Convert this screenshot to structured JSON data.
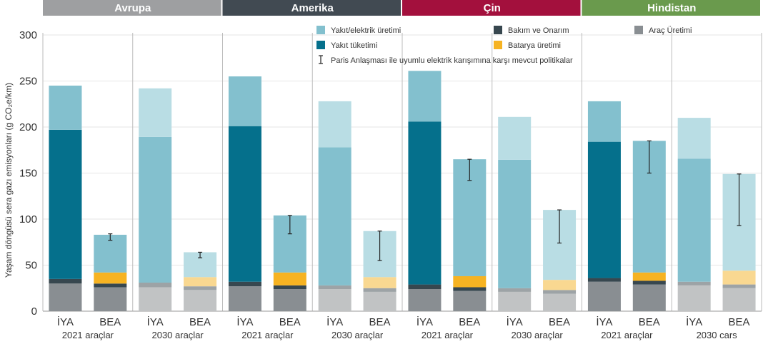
{
  "chart_data": {
    "type": "bar",
    "ylabel": "Yaşam döngüsü sera gazı emisyonları (g CO₂e/km)",
    "ylim": [
      0,
      300
    ],
    "yticks": [
      0,
      50,
      100,
      150,
      200,
      250,
      300
    ],
    "grid": true,
    "legend_position": "top-right",
    "colors": {
      "ice_fuel_production": "#83c0ce",
      "ice_fuel_consumption": "#05708c",
      "bev_fuel_production": "#83c0ce",
      "maintenance": "#37474f",
      "battery": "#f6b322",
      "vehicle_production": "#898e92",
      "faded_fuel_production": "#b9dde4",
      "faded_battery": "#f9d891",
      "faded_vehicle_production": "#c1c3c4",
      "faded_maintenance": "#9da3a6",
      "region_europe": "#9e9fa1",
      "region_america": "#414a52",
      "region_china": "#a3103d",
      "region_india": "#6a9a4d"
    },
    "legend": [
      {
        "key": "fuel_production",
        "label": "Yakıt/elektrik üretimi",
        "color": "#83c0ce"
      },
      {
        "key": "maintenance",
        "label": "Bakım ve Onarım",
        "color": "#37474f"
      },
      {
        "key": "vehicle_production",
        "label": "Araç Üretimi",
        "color": "#898e92"
      },
      {
        "key": "fuel_consumption",
        "label": "Yakıt tüketimi",
        "color": "#05708c"
      },
      {
        "key": "battery",
        "label": "Batarya üretimi",
        "color": "#f6b322"
      }
    ],
    "legend_errorbar_label": "Paris Anlaşması ile uyumlu elektrik karışımına karşı mevcut politikalar",
    "regions": [
      {
        "name": "Avrupa",
        "color": "#9e9fa1"
      },
      {
        "name": "Amerika",
        "color": "#414a52"
      },
      {
        "name": "Çin",
        "color": "#a3103d"
      },
      {
        "name": "Hindistan",
        "color": "#6a9a4d"
      }
    ],
    "groups": [
      {
        "region": "Avrupa",
        "label": "2021 araçlar",
        "faded": false,
        "bars": [
          {
            "category": "İYA",
            "vehicle_production": 30,
            "maintenance": 5,
            "battery": 0,
            "fuel_consumption": 162,
            "fuel_production": 48,
            "error": null
          },
          {
            "category": "BEA",
            "vehicle_production": 26,
            "maintenance": 4,
            "battery": 12,
            "fuel_consumption": 0,
            "fuel_production": 41,
            "error": [
              77,
              84
            ]
          }
        ]
      },
      {
        "region": "Avrupa",
        "label": "2030 araçlar",
        "faded": true,
        "bars": [
          {
            "category": "İYA",
            "vehicle_production": 26,
            "maintenance": 5,
            "battery": 0,
            "fuel_consumption": 0,
            "fuel_production": 211,
            "error": null
          },
          {
            "category": "BEA",
            "vehicle_production": 23,
            "maintenance": 4,
            "battery": 10,
            "fuel_consumption": 0,
            "fuel_production": 27,
            "error": [
              58,
              64
            ]
          }
        ]
      },
      {
        "region": "Amerika",
        "label": "2021 araçlar",
        "faded": false,
        "bars": [
          {
            "category": "İYA",
            "vehicle_production": 27,
            "maintenance": 5,
            "battery": 0,
            "fuel_consumption": 169,
            "fuel_production": 54,
            "error": null
          },
          {
            "category": "BEA",
            "vehicle_production": 24,
            "maintenance": 4,
            "battery": 14,
            "fuel_consumption": 0,
            "fuel_production": 62,
            "error": [
              84,
              104
            ]
          }
        ]
      },
      {
        "region": "Amerika",
        "label": "2030 araçlar",
        "faded": true,
        "bars": [
          {
            "category": "İYA",
            "vehicle_production": 24,
            "maintenance": 4,
            "battery": 0,
            "fuel_consumption": 0,
            "fuel_production": 200,
            "error": null
          },
          {
            "category": "BEA",
            "vehicle_production": 21,
            "maintenance": 4,
            "battery": 12,
            "fuel_consumption": 0,
            "fuel_production": 50,
            "error": [
              55,
              87
            ]
          }
        ]
      },
      {
        "region": "Çin",
        "label": "2021 araçlar",
        "faded": false,
        "bars": [
          {
            "category": "İYA",
            "vehicle_production": 24,
            "maintenance": 5,
            "battery": 0,
            "fuel_consumption": 177,
            "fuel_production": 55,
            "error": null
          },
          {
            "category": "BEA",
            "vehicle_production": 22,
            "maintenance": 4,
            "battery": 12,
            "fuel_consumption": 0,
            "fuel_production": 127,
            "error": [
              142,
              165
            ]
          }
        ]
      },
      {
        "region": "Çin",
        "label": "2030 araçlar",
        "faded": true,
        "bars": [
          {
            "category": "İYA",
            "vehicle_production": 21,
            "maintenance": 4,
            "battery": 0,
            "fuel_consumption": 0,
            "fuel_production": 186,
            "error": null
          },
          {
            "category": "BEA",
            "vehicle_production": 19,
            "maintenance": 4,
            "battery": 11,
            "fuel_consumption": 0,
            "fuel_production": 76,
            "error": [
              74,
              110
            ]
          }
        ]
      },
      {
        "region": "Hindistan",
        "label": "2021 araçlar",
        "faded": false,
        "bars": [
          {
            "category": "İYA",
            "vehicle_production": 32,
            "maintenance": 4,
            "battery": 0,
            "fuel_consumption": 148,
            "fuel_production": 44,
            "error": null
          },
          {
            "category": "BEA",
            "vehicle_production": 29,
            "maintenance": 4,
            "battery": 9,
            "fuel_consumption": 0,
            "fuel_production": 143,
            "error": [
              150,
              185
            ]
          }
        ]
      },
      {
        "region": "Hindistan",
        "label": "2030 cars",
        "faded": true,
        "bars": [
          {
            "category": "İYA",
            "vehicle_production": 28,
            "maintenance": 4,
            "battery": 0,
            "fuel_consumption": 0,
            "fuel_production": 178,
            "error": null
          },
          {
            "category": "BEA",
            "vehicle_production": 25,
            "maintenance": 4,
            "battery": 15,
            "fuel_consumption": 0,
            "fuel_production": 105,
            "error": [
              93,
              149
            ]
          }
        ]
      }
    ]
  }
}
